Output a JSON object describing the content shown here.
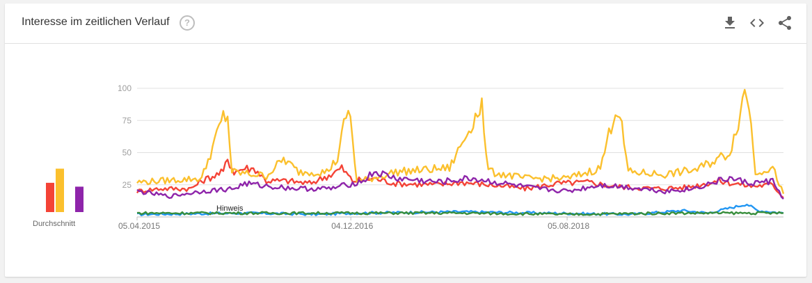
{
  "header": {
    "title": "Interesse im zeitlichen Verlauf",
    "help_icon": "help-circle-icon",
    "tools": [
      "download-icon",
      "embed-code-icon",
      "share-icon"
    ]
  },
  "average": {
    "label": "Durchschnitt",
    "values": [
      3,
      26,
      37,
      3,
      23
    ]
  },
  "note_label": "Hinweis",
  "chart_data": {
    "type": "line",
    "x": [
      "05.04.2015",
      "04.12.2016",
      "05.08.2018"
    ],
    "ylim": [
      0,
      100
    ],
    "y_ticks": [
      25,
      50,
      75,
      100
    ],
    "grid": true,
    "series": [
      {
        "color": "#2196f3",
        "anchors": [
          [
            0,
            2
          ],
          [
            50,
            3
          ],
          [
            85,
            2
          ],
          [
            100,
            3
          ],
          [
            150,
            4
          ],
          [
            190,
            3
          ],
          [
            230,
            2
          ],
          [
            253,
            5
          ],
          [
            265,
            3
          ],
          [
            283,
            10
          ],
          [
            288,
            5
          ],
          [
            300,
            3
          ]
        ]
      },
      {
        "color": "#f44336",
        "anchors": [
          [
            0,
            20
          ],
          [
            10,
            22
          ],
          [
            25,
            22
          ],
          [
            30,
            28
          ],
          [
            40,
            35
          ],
          [
            42,
            45
          ],
          [
            45,
            35
          ],
          [
            50,
            38
          ],
          [
            55,
            37
          ],
          [
            60,
            28
          ],
          [
            70,
            28
          ],
          [
            80,
            26
          ],
          [
            90,
            33
          ],
          [
            95,
            38
          ],
          [
            100,
            28
          ],
          [
            110,
            30
          ],
          [
            120,
            26
          ],
          [
            140,
            25
          ],
          [
            150,
            27
          ],
          [
            170,
            24
          ],
          [
            180,
            22
          ],
          [
            195,
            26
          ],
          [
            210,
            27
          ],
          [
            220,
            24
          ],
          [
            240,
            22
          ],
          [
            255,
            23
          ],
          [
            270,
            28
          ],
          [
            285,
            24
          ],
          [
            295,
            25
          ],
          [
            300,
            15
          ]
        ]
      },
      {
        "color": "#fbc02d",
        "anchors": [
          [
            0,
            27
          ],
          [
            10,
            28
          ],
          [
            30,
            30
          ],
          [
            40,
            78
          ],
          [
            42,
            78
          ],
          [
            44,
            35
          ],
          [
            60,
            32
          ],
          [
            68,
            45
          ],
          [
            75,
            35
          ],
          [
            88,
            35
          ],
          [
            93,
            45
          ],
          [
            97,
            80
          ],
          [
            99,
            78
          ],
          [
            102,
            27
          ],
          [
            120,
            35
          ],
          [
            145,
            38
          ],
          [
            160,
            88
          ],
          [
            162,
            45
          ],
          [
            164,
            35
          ],
          [
            180,
            30
          ],
          [
            200,
            30
          ],
          [
            215,
            38
          ],
          [
            222,
            84
          ],
          [
            224,
            80
          ],
          [
            228,
            35
          ],
          [
            245,
            33
          ],
          [
            260,
            37
          ],
          [
            275,
            50
          ],
          [
            280,
            80
          ],
          [
            282,
            100
          ],
          [
            284,
            88
          ],
          [
            287,
            35
          ],
          [
            295,
            38
          ],
          [
            300,
            18
          ]
        ]
      },
      {
        "color": "#388e3c",
        "anchors": [
          [
            0,
            3
          ],
          [
            40,
            3
          ],
          [
            100,
            3
          ],
          [
            150,
            3
          ],
          [
            200,
            2
          ],
          [
            250,
            3
          ],
          [
            300,
            3
          ]
        ]
      },
      {
        "color": "#8e24aa",
        "anchors": [
          [
            0,
            20
          ],
          [
            15,
            16
          ],
          [
            30,
            20
          ],
          [
            45,
            22
          ],
          [
            50,
            26
          ],
          [
            60,
            24
          ],
          [
            75,
            22
          ],
          [
            90,
            22
          ],
          [
            105,
            28
          ],
          [
            110,
            35
          ],
          [
            120,
            30
          ],
          [
            140,
            27
          ],
          [
            155,
            30
          ],
          [
            170,
            26
          ],
          [
            185,
            22
          ],
          [
            200,
            20
          ],
          [
            215,
            25
          ],
          [
            235,
            22
          ],
          [
            245,
            20
          ],
          [
            258,
            22
          ],
          [
            270,
            28
          ],
          [
            275,
            30
          ],
          [
            285,
            26
          ],
          [
            295,
            28
          ],
          [
            300,
            14
          ]
        ]
      }
    ]
  }
}
